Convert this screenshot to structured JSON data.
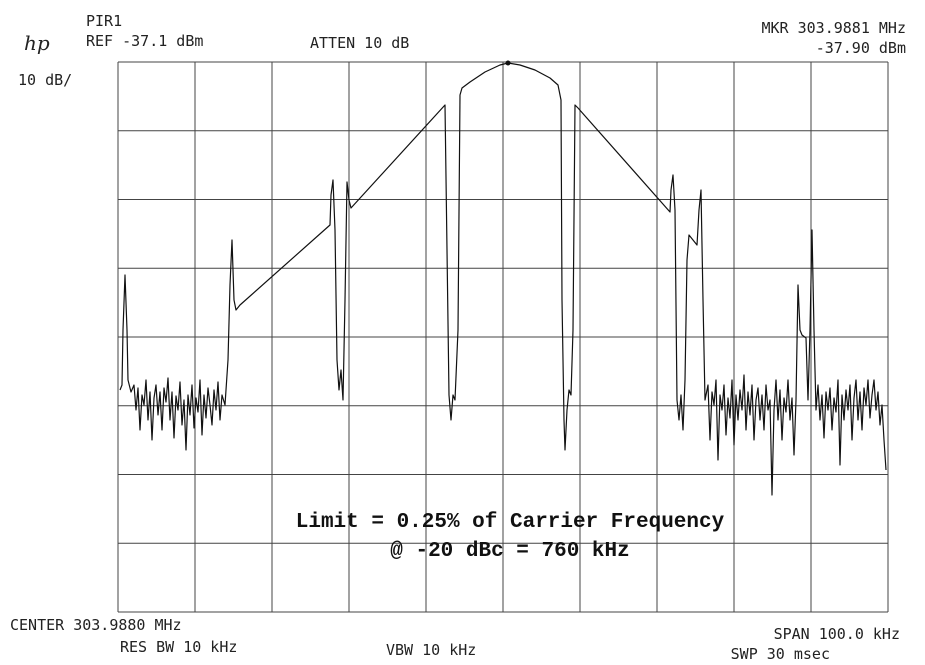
{
  "header": {
    "logo": "hp",
    "trace_name": "PIR1",
    "reference": "REF -37.1 dBm",
    "attenuation": "ATTEN 10 dB",
    "scale": "10 dB/",
    "marker_frequency": "MKR 303.9881 MHz",
    "marker_level": "-37.90 dBm"
  },
  "annotation": {
    "line1": "Limit = 0.25% of Carrier Frequency",
    "line2": "@ -20 dBc = 760 kHz"
  },
  "footer": {
    "center": "CENTER 303.9880 MHz",
    "res_bw": "RES BW 10 kHz",
    "vbw": "VBW 10 kHz",
    "span": "SPAN 100.0 kHz",
    "sweep": "SWP 30 msec"
  }
}
